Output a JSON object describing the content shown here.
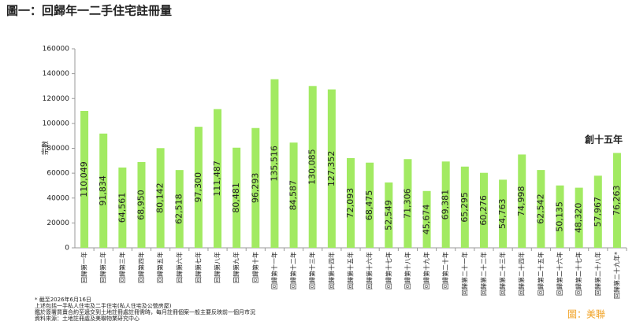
{
  "chart_data": {
    "type": "bar",
    "title": "圖一：回歸年一二手住宅註冊量",
    "y_label": "宗數",
    "categories": [
      "回歸第一年",
      "回歸第二年",
      "回歸第三年",
      "回歸第四年",
      "回歸第五年",
      "回歸第六年",
      "回歸第七年",
      "回歸第八年",
      "回歸第九年",
      "回歸第十年",
      "回歸第十一年",
      "回歸第十二年",
      "回歸第十三年",
      "回歸第十四年",
      "回歸第十五年",
      "回歸第十六年",
      "回歸第十七年",
      "回歸第十八年",
      "回歸第十九年",
      "回歸第二十年",
      "回歸第二十一年",
      "回歸第二十二年",
      "回歸第二十三年",
      "回歸第二十四年",
      "回歸第二十五年",
      "回歸第二十六年",
      "回歸第二十七年",
      "回歸第二十八年",
      "回歸第二十九年*"
    ],
    "values": [
      110049,
      91834,
      64561,
      68950,
      80142,
      62518,
      97300,
      111487,
      80481,
      96293,
      135516,
      84587,
      130085,
      127352,
      72093,
      68475,
      52549,
      71306,
      45674,
      69381,
      65295,
      60276,
      54763,
      74998,
      62542,
      50135,
      48320,
      57967,
      76263
    ],
    "value_labels": [
      "110,049",
      "91,834",
      "64,561",
      "68,950",
      "80,142",
      "62,518",
      "97,300",
      "111,487",
      "80,481",
      "96,293",
      "135,516",
      "84,587",
      "130,085",
      "127,352",
      "72,093",
      "68,475",
      "52,549",
      "71,306",
      "45,674",
      "69,381",
      "65,295",
      "60,276",
      "54,763",
      "74,998",
      "62,542",
      "50,135",
      "48,320",
      "57,967",
      "76,263"
    ],
    "color": "#a2ea62",
    "ylim": [
      0,
      160000
    ],
    "yticks": [
      0,
      20000,
      40000,
      60000,
      80000,
      100000,
      120000,
      140000,
      160000
    ],
    "grid": false,
    "annotation": "創十五年",
    "notes": [
      "* 截至2026年6月16日",
      "上述包括一手私人住宅及二手住宅(私人住宅及公營房屋)",
      "鑑於簽署買賣合約至遞交到土地註冊處註冊需時，每月註冊個案一般主要反映前一個月市況",
      "資料來源：土地註冊處及美聯物業研究中心"
    ],
    "source": "圖：美聯"
  }
}
